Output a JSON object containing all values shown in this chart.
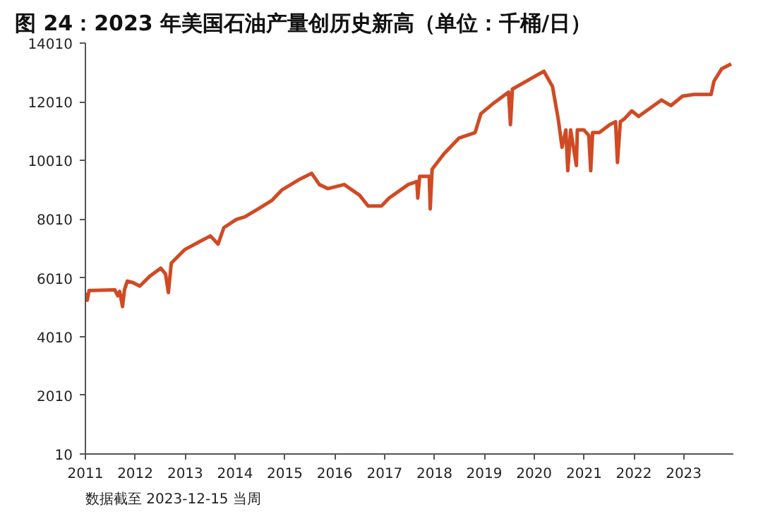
{
  "chart_data": {
    "type": "line",
    "title": "图 24：2023 年美国石油产量创历史新高（单位：千桶/日）",
    "annotations": [
      "数据截至 2023-12-15 当周"
    ],
    "x": [
      "2011-01-07",
      "2011-01-14",
      "2011-01-28",
      "2011-08-05",
      "2011-08-26",
      "2011-09-09",
      "2011-09-30",
      "2011-10-14",
      "2011-11-04",
      "2011-12-16",
      "2012-02-03",
      "2012-04-20",
      "2012-07-06",
      "2012-08-10",
      "2012-08-31",
      "2012-09-21",
      "2012-12-28",
      "2013-04-19",
      "2013-07-05",
      "2013-08-30",
      "2013-10-11",
      "2014-01-10",
      "2014-03-14",
      "2014-06-20",
      "2014-09-26",
      "2014-12-12",
      "2015-04-24",
      "2015-07-17",
      "2015-09-11",
      "2015-11-13",
      "2016-03-11",
      "2016-07-01",
      "2016-09-02",
      "2016-12-09",
      "2017-02-03",
      "2017-06-23",
      "2017-08-25",
      "2017-09-01",
      "2017-09-15",
      "2017-11-24",
      "2017-12-01",
      "2017-12-15",
      "2018-03-09",
      "2018-06-29",
      "2018-10-26",
      "2018-12-07",
      "2019-03-15",
      "2019-06-28",
      "2019-07-12",
      "2019-07-26",
      "2019-12-13",
      "2020-03-13",
      "2020-05-15",
      "2020-06-26",
      "2020-07-24",
      "2020-08-21",
      "2020-09-04",
      "2020-09-25",
      "2020-11-06",
      "2020-11-13",
      "2020-12-31",
      "2021-02-05",
      "2021-02-19",
      "2021-03-05",
      "2021-04-23",
      "2021-07-09",
      "2021-08-20",
      "2021-09-03",
      "2021-09-24",
      "2021-10-22",
      "2021-12-17",
      "2022-02-04",
      "2022-05-27",
      "2022-07-22",
      "2022-09-30",
      "2022-12-23",
      "2023-03-17",
      "2023-07-21",
      "2023-08-11",
      "2023-10-06",
      "2023-12-15"
    ],
    "series": [
      {
        "color": "#d04a24",
        "values": [
          5500,
          5250,
          5580,
          5600,
          5400,
          5550,
          5030,
          5600,
          5900,
          5850,
          5730,
          6080,
          6340,
          6140,
          5510,
          6510,
          6970,
          7250,
          7440,
          7160,
          7720,
          8000,
          8090,
          8360,
          8640,
          9010,
          9380,
          9570,
          9190,
          9050,
          9190,
          8830,
          8460,
          8460,
          8730,
          9190,
          9290,
          8730,
          9470,
          9470,
          8360,
          9710,
          10220,
          10770,
          10960,
          11600,
          11980,
          12340,
          11230,
          12440,
          12810,
          13050,
          12530,
          11420,
          10460,
          11050,
          9660,
          11050,
          9840,
          11050,
          11050,
          10860,
          9660,
          10960,
          10960,
          11230,
          11330,
          9940,
          11330,
          11420,
          11700,
          11510,
          11880,
          12070,
          11880,
          12200,
          12260,
          12260,
          12710,
          13130,
          13300
        ]
      }
    ],
    "xlim": [
      "2011-01-01",
      "2023-12-31"
    ],
    "xticks": [
      {
        "value": "2011-01-01",
        "label": "2011"
      },
      {
        "value": "2012-01-01",
        "label": "2012"
      },
      {
        "value": "2013-01-01",
        "label": "2013"
      },
      {
        "value": "2014-01-01",
        "label": "2014"
      },
      {
        "value": "2015-01-01",
        "label": "2015"
      },
      {
        "value": "2016-01-01",
        "label": "2016"
      },
      {
        "value": "2017-01-01",
        "label": "2017"
      },
      {
        "value": "2018-01-01",
        "label": "2018"
      },
      {
        "value": "2019-01-01",
        "label": "2019"
      },
      {
        "value": "2020-01-01",
        "label": "2020"
      },
      {
        "value": "2021-01-01",
        "label": "2021"
      },
      {
        "value": "2022-01-01",
        "label": "2022"
      },
      {
        "value": "2023-01-01",
        "label": "2023"
      }
    ],
    "ylim": [
      10,
      14010
    ],
    "yticks": [
      10,
      2010,
      4010,
      6010,
      8010,
      10010,
      12010,
      14010
    ],
    "grid": false,
    "marker": "none",
    "line_style": "solid"
  }
}
